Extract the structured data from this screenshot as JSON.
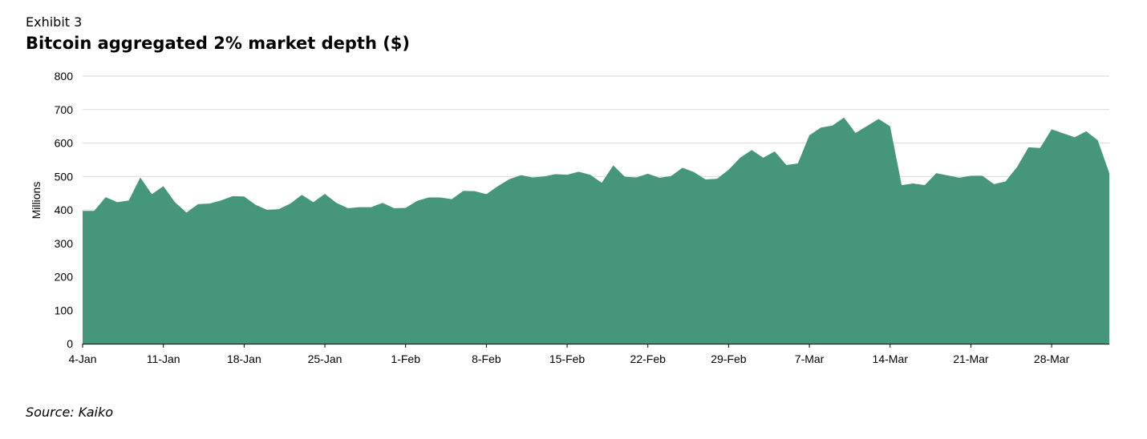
{
  "header": {
    "exhibit": "Exhibit 3",
    "title": "Bitcoin aggregated 2% market depth ($)"
  },
  "footer": {
    "source": "Source: Kaiko"
  },
  "chart_data": {
    "type": "area",
    "title": "Bitcoin aggregated 2% market depth ($)",
    "xlabel": "",
    "ylabel": "Millions",
    "ylim": [
      0,
      800
    ],
    "yticks": [
      0,
      100,
      200,
      300,
      400,
      500,
      600,
      700,
      800
    ],
    "xticks": [
      "4-Jan",
      "11-Jan",
      "18-Jan",
      "25-Jan",
      "1-Feb",
      "8-Feb",
      "15-Feb",
      "22-Feb",
      "29-Feb",
      "7-Mar",
      "14-Mar",
      "21-Mar",
      "28-Mar"
    ],
    "grid": true,
    "color": "#45967a",
    "series": [
      {
        "values": [
          397,
          397,
          438,
          423,
          428,
          497,
          447,
          471,
          423,
          392,
          417,
          419,
          428,
          441,
          440,
          415,
          400,
          402,
          419,
          445,
          423,
          448,
          421,
          405,
          408,
          408,
          421,
          405,
          406,
          427,
          437,
          437,
          432,
          457,
          456,
          447,
          471,
          492,
          504,
          497,
          500,
          507,
          505,
          514,
          505,
          481,
          533,
          499,
          497,
          508,
          496,
          501,
          526,
          513,
          491,
          493,
          520,
          556,
          579,
          556,
          575,
          534,
          539,
          623,
          646,
          652,
          676,
          630,
          651,
          672,
          650,
          474,
          479,
          474,
          510,
          503,
          496,
          502,
          502,
          477,
          485,
          528,
          587,
          585,
          641,
          629,
          617,
          635,
          608,
          510
        ]
      }
    ]
  }
}
